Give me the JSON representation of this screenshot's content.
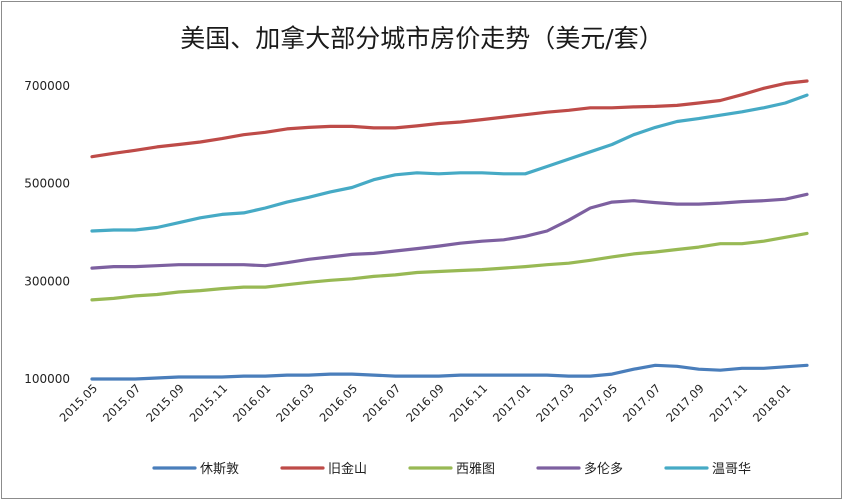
{
  "chart_data": {
    "type": "line",
    "title": "美国、加拿大部分城市房价走势（美元/套）",
    "xlabel": "",
    "ylabel": "",
    "ylim": [
      100000,
      800000
    ],
    "y_ticks": [
      100000,
      300000,
      500000,
      700000
    ],
    "y_tick_labels": [
      "100000",
      "300000",
      "500000",
      "700000"
    ],
    "x": [
      "2015.05",
      "2015.06",
      "2015.07",
      "2015.08",
      "2015.09",
      "2015.10",
      "2015.11",
      "2015.12",
      "2016.01",
      "2016.02",
      "2016.03",
      "2016.04",
      "2016.05",
      "2016.06",
      "2016.07",
      "2016.08",
      "2016.09",
      "2016.10",
      "2016.11",
      "2016.12",
      "2017.01",
      "2017.02",
      "2017.03",
      "2017.04",
      "2017.05",
      "2017.06",
      "2017.07",
      "2017.08",
      "2017.09",
      "2017.10",
      "2017.11",
      "2017.12",
      "2018.01",
      "2018.02"
    ],
    "x_tick_labels": [
      "2015.05",
      "2015.07",
      "2015.09",
      "2015.11",
      "2016.01",
      "2016.03",
      "2016.05",
      "2016.07",
      "2016.09",
      "2016.11",
      "2017.01",
      "2017.03",
      "2017.05",
      "2017.07",
      "2017.09",
      "2017.11",
      "2018.01"
    ],
    "grid": false,
    "legend_position": "bottom",
    "series": [
      {
        "name": "休斯敦",
        "color": "#4a7ebb",
        "values": [
          100000,
          100000,
          100000,
          102000,
          104000,
          104000,
          104000,
          106000,
          106000,
          108000,
          108000,
          110000,
          110000,
          108000,
          106000,
          106000,
          106000,
          108000,
          108000,
          108000,
          108000,
          108000,
          106000,
          106000,
          110000,
          120000,
          128000,
          126000,
          120000,
          118000,
          122000,
          122000,
          125000,
          128000
        ]
      },
      {
        "name": "旧金山",
        "color": "#be4b48",
        "values": [
          555000,
          562000,
          568000,
          575000,
          580000,
          585000,
          592000,
          600000,
          605000,
          612000,
          615000,
          617000,
          617000,
          614000,
          614000,
          618000,
          623000,
          626000,
          631000,
          636000,
          641000,
          646000,
          650000,
          655000,
          655000,
          657000,
          658000,
          660000,
          665000,
          670000,
          682000,
          695000,
          705000,
          710000
        ]
      },
      {
        "name": "西雅图",
        "color": "#98b954",
        "values": [
          262000,
          265000,
          270000,
          273000,
          278000,
          281000,
          285000,
          288000,
          288000,
          293000,
          298000,
          302000,
          305000,
          310000,
          313000,
          318000,
          320000,
          322000,
          324000,
          327000,
          330000,
          334000,
          337000,
          343000,
          350000,
          356000,
          360000,
          365000,
          370000,
          377000,
          377000,
          382000,
          390000,
          398000
        ]
      },
      {
        "name": "多伦多",
        "color": "#7d60a0",
        "values": [
          327000,
          330000,
          330000,
          332000,
          334000,
          334000,
          334000,
          334000,
          332000,
          338000,
          345000,
          350000,
          355000,
          357000,
          362000,
          367000,
          372000,
          378000,
          382000,
          385000,
          392000,
          403000,
          425000,
          450000,
          462000,
          465000,
          461000,
          458000,
          458000,
          460000,
          463000,
          465000,
          468000,
          478000
        ]
      },
      {
        "name": "温哥华",
        "color": "#46aac5",
        "values": [
          403000,
          405000,
          405000,
          410000,
          420000,
          430000,
          437000,
          440000,
          450000,
          462000,
          472000,
          483000,
          492000,
          508000,
          518000,
          522000,
          520000,
          522000,
          522000,
          520000,
          520000,
          535000,
          550000,
          565000,
          580000,
          600000,
          615000,
          627000,
          633000,
          640000,
          647000,
          655000,
          665000,
          681000
        ]
      }
    ]
  }
}
